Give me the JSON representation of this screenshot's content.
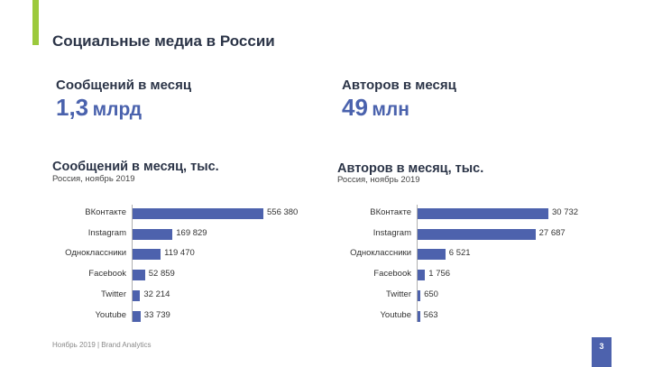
{
  "slide": {
    "title": "Социальные медиа в России",
    "footer": "Ноябрь 2019 | Brand Analytics",
    "page_number": "3",
    "accent_color": "#9bc93c",
    "brand_color": "#4d62ad"
  },
  "stats": [
    {
      "label": "Сообщений в месяц",
      "value": "1,3",
      "unit": "млрд"
    },
    {
      "label": "Авторов в месяц",
      "value": "49",
      "unit": "млн"
    }
  ],
  "chart_data": [
    {
      "type": "bar",
      "orientation": "horizontal",
      "title": "Сообщений в месяц, тыс.",
      "subtitle": "Россия, ноябрь 2019",
      "categories": [
        "ВКонтакте",
        "Instagram",
        "Одноклассники",
        "Facebook",
        "Twitter",
        "Youtube"
      ],
      "values": [
        556380,
        169829,
        119470,
        52859,
        32214,
        33739
      ],
      "value_labels": [
        "556 380",
        "169 829",
        "119 470",
        "52 859",
        "32 214",
        "33 739"
      ],
      "xlim": [
        0,
        556380
      ],
      "grid": false,
      "color": "#4d62ad"
    },
    {
      "type": "bar",
      "orientation": "horizontal",
      "title": "Авторов в месяц, тыс.",
      "subtitle": "Россия, ноябрь 2019",
      "categories": [
        "ВКонтакте",
        "Instagram",
        "Одноклассники",
        "Facebook",
        "Twitter",
        "Youtube"
      ],
      "values": [
        30732,
        27687,
        6521,
        1756,
        650,
        563
      ],
      "value_labels": [
        "30 732",
        "27 687",
        "6 521",
        "1 756",
        "650",
        "563"
      ],
      "xlim": [
        0,
        30732
      ],
      "grid": false,
      "color": "#4d62ad"
    }
  ]
}
